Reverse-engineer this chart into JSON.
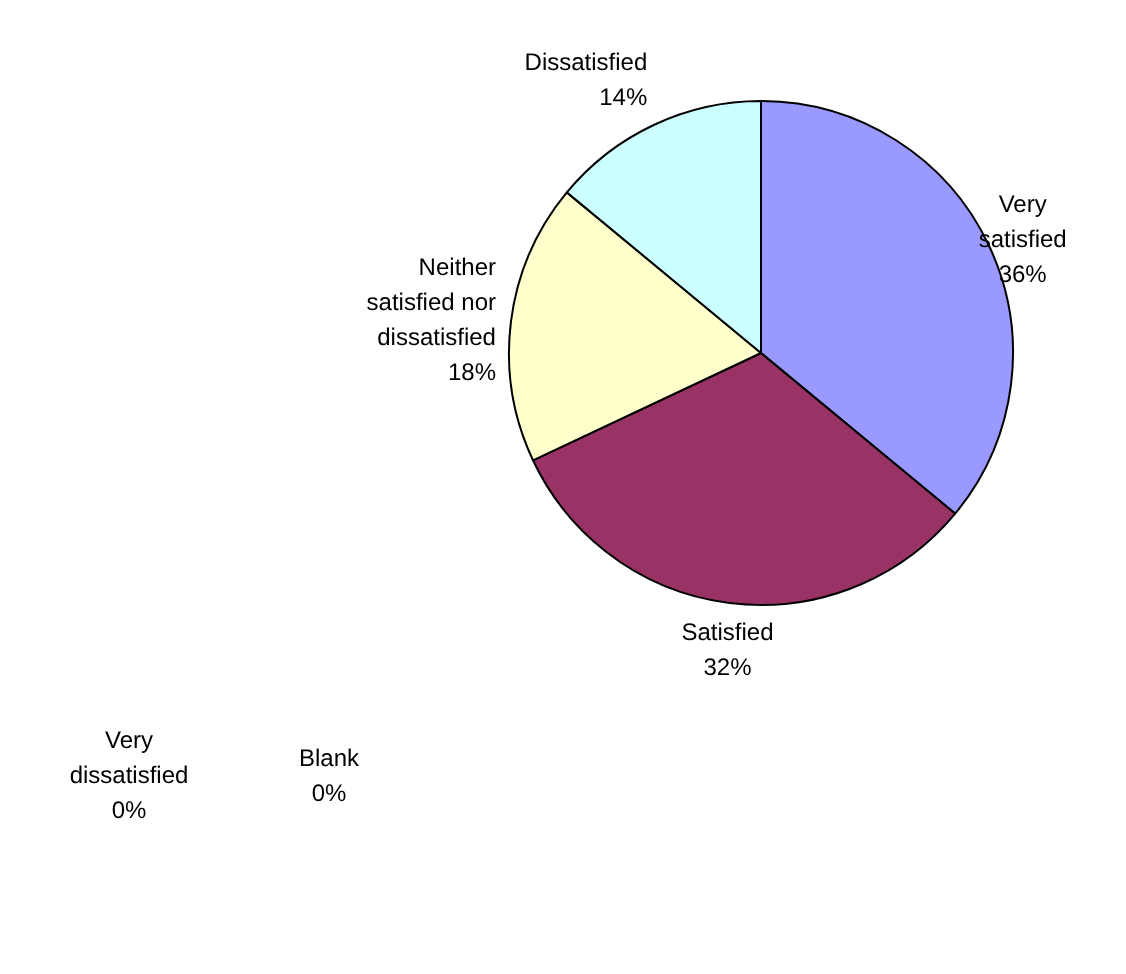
{
  "chart_data": {
    "type": "pie",
    "categories": [
      "Very satisfied",
      "Satisfied",
      "Neither satisfied nor dissatisfied",
      "Dissatisfied",
      "Very dissatisfied",
      "Blank"
    ],
    "values": [
      36,
      32,
      18,
      14,
      0,
      0
    ],
    "colors": [
      "#9999ff",
      "#993366",
      "#ffffcc",
      "#ccffff",
      "#3366ff",
      "#ff8080"
    ],
    "value_labels": [
      "36%",
      "32%",
      "18%",
      "14%",
      "0%",
      "0%"
    ]
  }
}
